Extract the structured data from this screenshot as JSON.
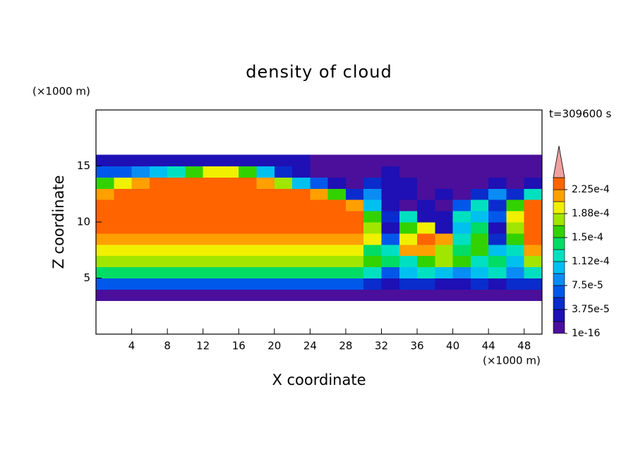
{
  "chart_data": {
    "type": "contour",
    "title": "density of cloud",
    "y_unit": "(×1000 m)",
    "x_unit": "(×1000 m)",
    "time_label": "t=309600 s",
    "xlabel": "X coordinate",
    "ylabel": "Z coordinate",
    "xlim": [
      0,
      50
    ],
    "ylim": [
      0,
      20
    ],
    "xticks": [
      4,
      8,
      12,
      16,
      20,
      24,
      28,
      32,
      36,
      40,
      44,
      48
    ],
    "yticks": [
      5,
      10,
      15
    ],
    "x_edges": [
      0,
      2,
      4,
      6,
      8,
      10,
      12,
      14,
      16,
      18,
      20,
      22,
      24,
      26,
      28,
      30,
      32,
      34,
      36,
      38,
      40,
      42,
      44,
      46,
      48,
      50
    ],
    "z_edges": [
      3,
      4,
      5,
      6,
      7,
      8,
      9,
      10,
      11,
      12,
      13,
      14,
      15,
      16
    ],
    "values": [
      [
        1e-05,
        1e-05,
        1e-05,
        1e-05,
        1e-05,
        1e-05,
        1e-05,
        1e-05,
        1e-05,
        1e-05,
        1e-05,
        1e-05,
        1e-05,
        1e-05,
        1e-05,
        1e-05,
        1e-05,
        1e-05,
        1e-05,
        1e-05,
        1e-05,
        1e-05,
        1e-05,
        1e-05,
        1e-05
      ],
      [
        7e-05,
        7e-05,
        7e-05,
        7e-05,
        7e-05,
        7e-05,
        7e-05,
        7e-05,
        7e-05,
        7e-05,
        7e-05,
        7e-05,
        7e-05,
        7e-05,
        7e-05,
        5e-05,
        3e-05,
        5e-05,
        5e-05,
        3e-05,
        3e-05,
        5e-05,
        3e-05,
        5e-05,
        5e-05
      ],
      [
        0.000145,
        0.000145,
        0.000145,
        0.000145,
        0.000145,
        0.000145,
        0.000145,
        0.000145,
        0.000145,
        0.000145,
        0.000145,
        0.000145,
        0.000145,
        0.000145,
        0.000145,
        0.00013,
        7e-05,
        0.00011,
        0.00013,
        0.00011,
        9e-05,
        0.00011,
        0.00013,
        9e-05,
        0.00013
      ],
      [
        0.00018,
        0.00018,
        0.00018,
        0.00018,
        0.00018,
        0.00018,
        0.00018,
        0.00018,
        0.00018,
        0.00018,
        0.00018,
        0.00018,
        0.00018,
        0.00018,
        0.00018,
        0.00016,
        0.000145,
        0.00013,
        0.00016,
        0.00018,
        0.00016,
        0.00013,
        0.000145,
        0.00011,
        0.00018
      ],
      [
        0.0002,
        0.0002,
        0.0002,
        0.0002,
        0.0002,
        0.0002,
        0.0002,
        0.0002,
        0.0002,
        0.0002,
        0.0002,
        0.0002,
        0.0002,
        0.0002,
        0.0002,
        0.000145,
        0.00013,
        0.00022,
        0.00022,
        0.00018,
        0.000145,
        0.00016,
        0.00011,
        0.00013,
        0.00022
      ],
      [
        0.00022,
        0.00022,
        0.00022,
        0.00022,
        0.00022,
        0.00022,
        0.00022,
        0.00022,
        0.00022,
        0.00022,
        0.00022,
        0.00022,
        0.00022,
        0.00022,
        0.00022,
        0.0002,
        7e-05,
        0.0002,
        0.000235,
        0.00022,
        0.00013,
        0.00016,
        5e-05,
        0.00016,
        0.000235
      ],
      [
        0.000235,
        0.000235,
        0.000235,
        0.000235,
        0.000235,
        0.000235,
        0.000235,
        0.000235,
        0.000235,
        0.000235,
        0.000235,
        0.000235,
        0.000235,
        0.000235,
        0.000235,
        0.00018,
        3e-05,
        0.00016,
        0.0002,
        3e-05,
        0.00011,
        0.000145,
        3e-05,
        0.00018,
        0.000235
      ],
      [
        0.000235,
        0.000235,
        0.000235,
        0.000235,
        0.000235,
        0.000235,
        0.000235,
        0.000235,
        0.000235,
        0.000235,
        0.000235,
        0.000235,
        0.000235,
        0.000235,
        0.000235,
        0.00016,
        5e-05,
        0.00013,
        3e-05,
        3e-05,
        0.00013,
        0.00011,
        7e-05,
        0.0002,
        0.000235
      ],
      [
        0.000235,
        0.000235,
        0.000235,
        0.000235,
        0.000235,
        0.000235,
        0.000235,
        0.000235,
        0.000235,
        0.000235,
        0.000235,
        0.000235,
        0.000235,
        0.000235,
        0.00022,
        0.00011,
        3e-05,
        1e-05,
        3e-05,
        1e-05,
        7e-05,
        0.00013,
        5e-05,
        0.00016,
        0.000235
      ],
      [
        0.00022,
        0.000235,
        0.000235,
        0.000235,
        0.000235,
        0.000235,
        0.000235,
        0.000235,
        0.000235,
        0.000235,
        0.000235,
        0.000235,
        0.00022,
        0.00016,
        5e-05,
        9e-05,
        3e-05,
        3e-05,
        1e-05,
        3e-05,
        1e-05,
        5e-05,
        9e-05,
        5e-05,
        0.00013
      ],
      [
        0.00016,
        0.0002,
        0.00022,
        0.000235,
        0.000235,
        0.000235,
        0.000235,
        0.000235,
        0.000235,
        0.00022,
        0.00018,
        0.00011,
        7e-05,
        3e-05,
        1e-05,
        5e-05,
        3e-05,
        3e-05,
        1e-05,
        1e-05,
        1e-05,
        1e-05,
        3e-05,
        1e-05,
        3e-05
      ],
      [
        7e-05,
        7e-05,
        9e-05,
        0.00011,
        0.00013,
        0.00016,
        0.0002,
        0.0002,
        0.00016,
        0.00011,
        5e-05,
        3e-05,
        1e-05,
        1e-05,
        1e-05,
        1e-05,
        3e-05,
        1e-05,
        1e-05,
        1e-05,
        1e-05,
        1e-05,
        1e-05,
        1e-05,
        1e-05
      ],
      [
        3e-05,
        3e-05,
        3e-05,
        3e-05,
        3e-05,
        3e-05,
        3e-05,
        3e-05,
        3e-05,
        3e-05,
        3e-05,
        3e-05,
        1e-05,
        1e-05,
        1e-05,
        1e-05,
        1e-05,
        1e-05,
        1e-05,
        1e-05,
        1e-05,
        1e-05,
        1e-05,
        1e-05,
        1e-05
      ]
    ],
    "levels": [
      1e-16,
      1.875e-05,
      3.75e-05,
      5.625e-05,
      7.5e-05,
      9.375e-05,
      0.0001125,
      0.00013125,
      0.00015,
      0.00016875,
      0.0001875,
      0.00020625,
      0.000225,
      0.00024375
    ],
    "colors": [
      "#4b0f9b",
      "#1e10b4",
      "#0a2ccc",
      "#0058ea",
      "#0a8cf5",
      "#00c0f0",
      "#00e0c0",
      "#00dc64",
      "#32d200",
      "#a0e600",
      "#f0f000",
      "#ffa000",
      "#ff6400",
      "#f03228"
    ],
    "extend_color": "#f0a0a0",
    "colorbar_ticks": [
      {
        "value": 1e-16,
        "label": "1e-16"
      },
      {
        "value": 3.75e-05,
        "label": "3.75e-5"
      },
      {
        "value": 7.5e-05,
        "label": "7.5e-5"
      },
      {
        "value": 0.0001125,
        "label": "1.12e-4"
      },
      {
        "value": 0.00015,
        "label": "1.5e-4"
      },
      {
        "value": 0.0001875,
        "label": "1.88e-4"
      },
      {
        "value": 0.000225,
        "label": "2.25e-4"
      }
    ]
  }
}
